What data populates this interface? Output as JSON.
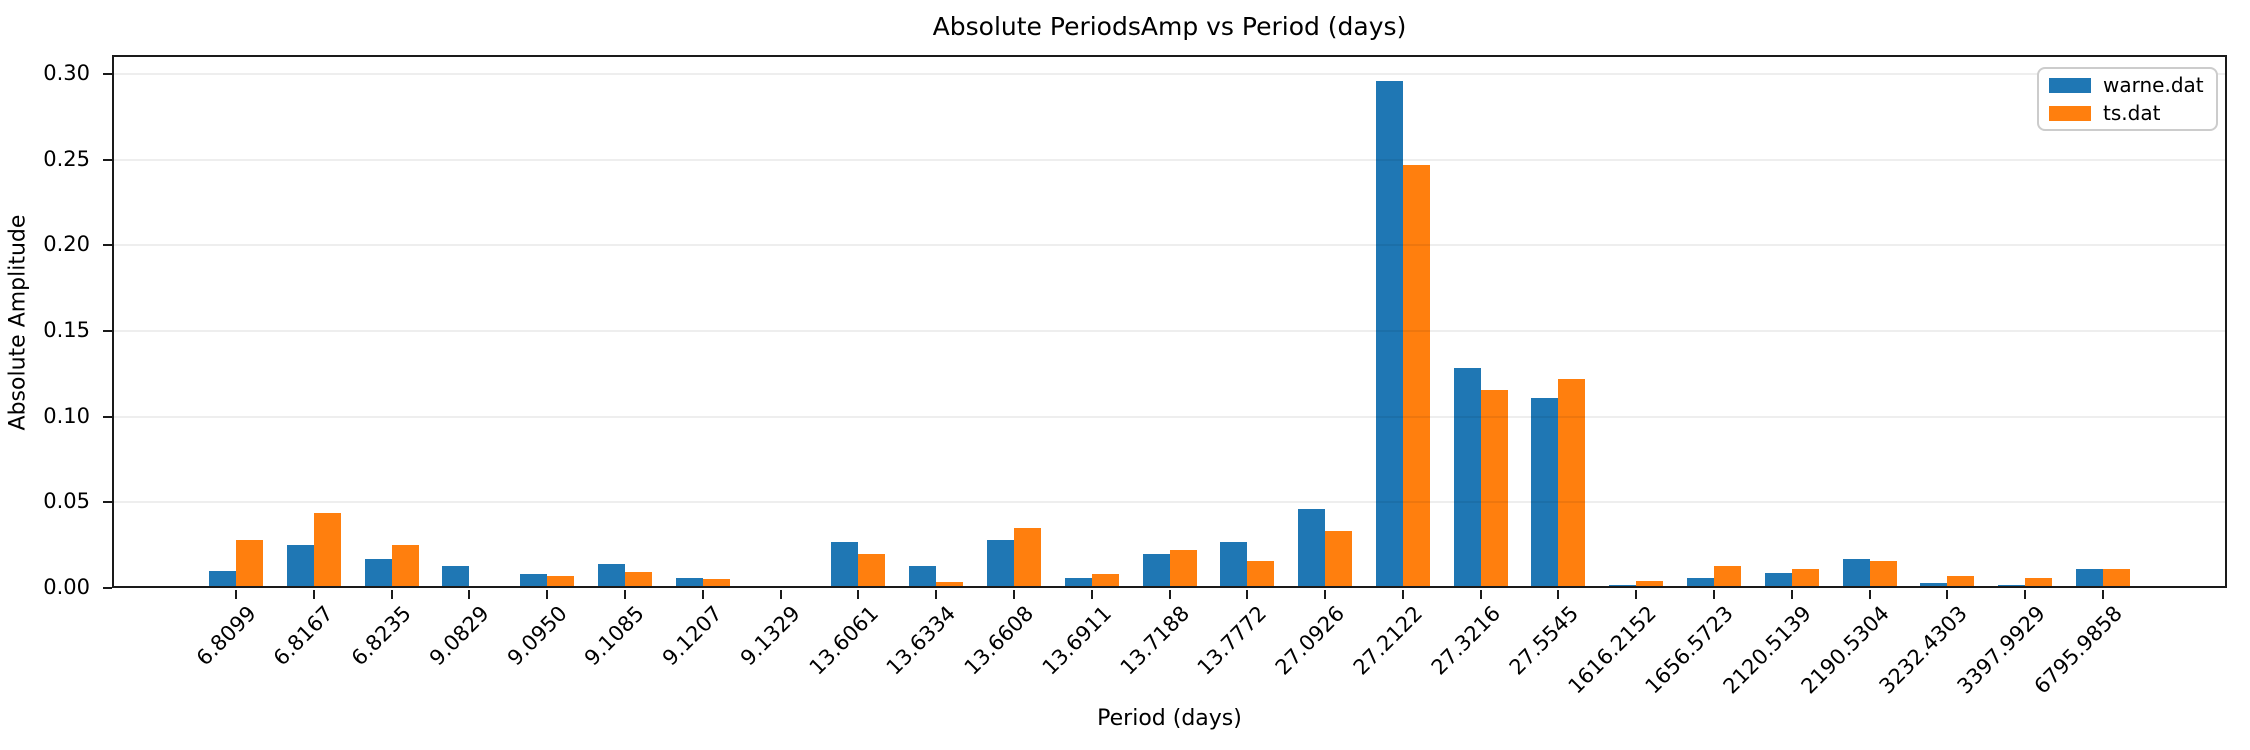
{
  "chart_data": {
    "type": "bar",
    "title": "Absolute PeriodsAmp vs Period (days)",
    "xlabel": "Period (days)",
    "ylabel": "Absolute Amplitude",
    "ylim": [
      0,
      0.3112
    ],
    "grid": "horizontal",
    "legend_position": "upper right",
    "ytick_labels": [
      "0.00",
      "0.05",
      "0.10",
      "0.15",
      "0.20",
      "0.25",
      "0.30"
    ],
    "ytick_values": [
      0.0,
      0.05,
      0.1,
      0.15,
      0.2,
      0.25,
      0.3
    ],
    "categories": [
      "6.8099",
      "6.8167",
      "6.8235",
      "9.0829",
      "9.0950",
      "9.1085",
      "9.1207",
      "9.1329",
      "13.6061",
      "13.6334",
      "13.6608",
      "13.6911",
      "13.7188",
      "13.7772",
      "27.0926",
      "27.2122",
      "27.3216",
      "27.5545",
      "1616.2152",
      "1656.5723",
      "2120.5139",
      "2190.5304",
      "3232.4303",
      "3397.9929",
      "6795.9858"
    ],
    "series": [
      {
        "name": "warne.dat",
        "color": "#1f77b4",
        "values": [
          0.01,
          0.025,
          0.017,
          0.013,
          0.008,
          0.014,
          0.006,
          0.0005,
          0.027,
          0.013,
          0.028,
          0.006,
          0.02,
          0.027,
          0.046,
          0.296,
          0.1285,
          0.111,
          0.002,
          0.006,
          0.009,
          0.017,
          0.003,
          0.002,
          0.011
        ]
      },
      {
        "name": "ts.dat",
        "color": "#ff7f0e",
        "values": [
          0.028,
          0.044,
          0.025,
          0.001,
          0.007,
          0.0095,
          0.005,
          0.0008,
          0.02,
          0.0035,
          0.035,
          0.008,
          0.022,
          0.0155,
          0.033,
          0.247,
          0.1155,
          0.122,
          0.004,
          0.013,
          0.011,
          0.016,
          0.007,
          0.006,
          0.011
        ]
      }
    ]
  }
}
